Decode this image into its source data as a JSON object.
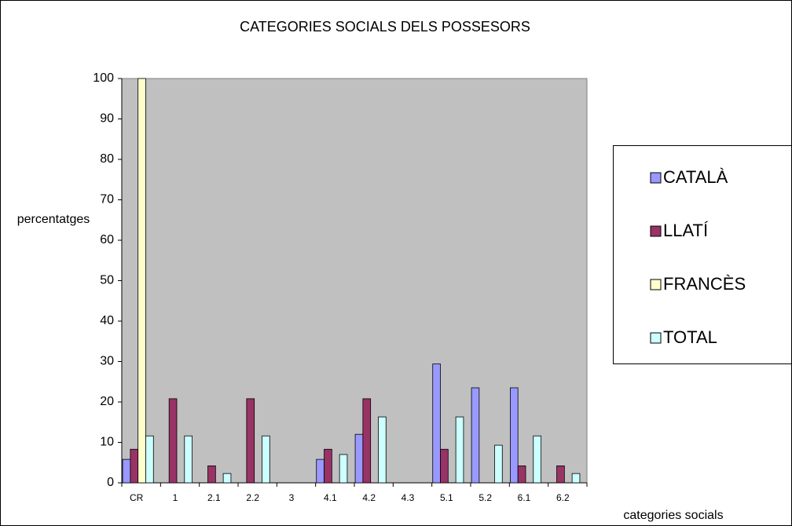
{
  "chart_data": {
    "type": "bar",
    "title": "CATEGORIES SOCIALS DELS POSSESORS",
    "y_label": "percentatges",
    "x_label": "categories socials",
    "categories": [
      "CR",
      "1",
      "2.1",
      "2.2",
      "3",
      "4.1",
      "4.2",
      "4.3",
      "5.1",
      "5.2",
      "6.1",
      "6.2"
    ],
    "series": [
      {
        "name": "CATALÀ",
        "color": "#9999ff",
        "values": [
          5.8,
          0,
          0,
          0,
          0,
          5.8,
          12,
          0,
          29.4,
          23.5,
          23.5,
          0
        ]
      },
      {
        "name": "LLATÍ",
        "color": "#993366",
        "values": [
          8.3,
          20.8,
          4.2,
          20.8,
          0,
          8.3,
          20.8,
          0,
          8.3,
          0,
          4.2,
          4.2
        ]
      },
      {
        "name": "FRANCÈS",
        "color": "#ffffcc",
        "values": [
          100,
          0,
          0,
          0,
          0,
          0,
          0,
          0,
          0,
          0,
          0,
          0
        ]
      },
      {
        "name": "TOTAL",
        "color": "#ccffff",
        "values": [
          11.6,
          11.6,
          2.3,
          11.6,
          0,
          7,
          16.3,
          0,
          16.3,
          9.3,
          11.6,
          2.3
        ]
      }
    ],
    "ylim": [
      0,
      100
    ],
    "yticks": [
      0,
      10,
      20,
      30,
      40,
      50,
      60,
      70,
      80,
      90,
      100
    ],
    "legend": "right",
    "plot_background": "#c0c0c0"
  }
}
